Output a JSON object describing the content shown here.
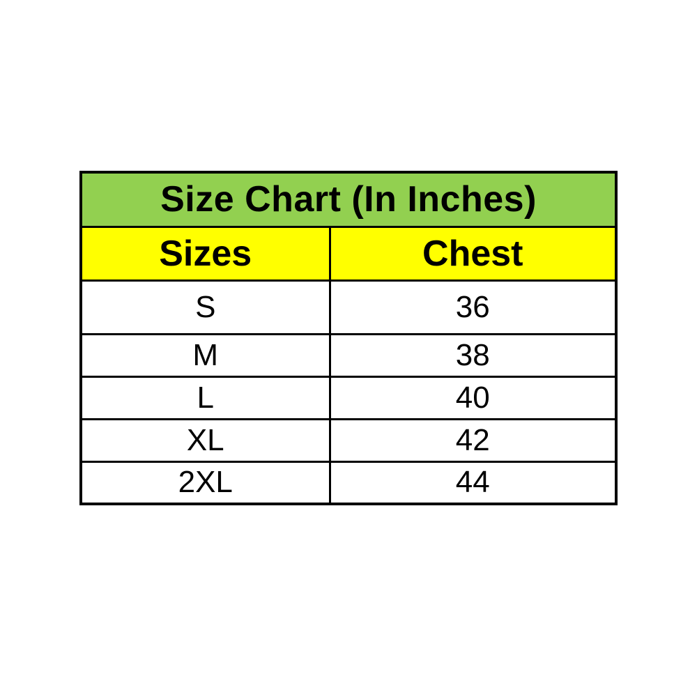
{
  "page": {
    "background_color": "#ffffff"
  },
  "colors": {
    "title_row_bg": "#92d050",
    "header_row_bg": "#ffff00",
    "data_row_bg": "#ffffff",
    "border": "#000000",
    "text": "#000000"
  },
  "chart_data": {
    "type": "table",
    "title": "Size Chart (In Inches)",
    "columns": [
      "Sizes",
      "Chest"
    ],
    "rows": [
      [
        "S",
        "36"
      ],
      [
        "M",
        "38"
      ],
      [
        "L",
        "40"
      ],
      [
        "XL",
        "42"
      ],
      [
        "2XL",
        "44"
      ]
    ]
  }
}
